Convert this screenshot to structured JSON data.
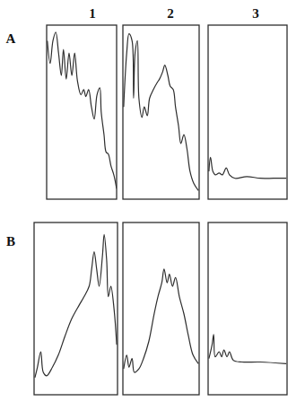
{
  "column_labels": [
    "1",
    "2",
    "3"
  ],
  "row_labels": [
    "A",
    "B"
  ],
  "chart_data": [
    {
      "type": "line",
      "tick_labels": false,
      "xlim": [
        0,
        100
      ],
      "ylim": [
        0,
        100
      ],
      "x": [
        1,
        5,
        9,
        13,
        17,
        21,
        24,
        28,
        32,
        36,
        40,
        44,
        49,
        53,
        56,
        60,
        64,
        68,
        72,
        76,
        78,
        82,
        85,
        88,
        92,
        96,
        100
      ],
      "values": [
        91,
        78,
        91,
        96,
        84,
        71,
        86,
        69,
        84,
        71,
        84,
        68,
        60,
        63,
        59,
        63,
        53,
        46,
        60,
        64,
        50,
        37,
        27,
        26,
        19,
        14,
        6
      ]
    },
    {
      "type": "line",
      "tick_labels": false,
      "xlim": [
        0,
        100
      ],
      "ylim": [
        0,
        100
      ],
      "x": [
        1,
        5,
        8,
        12,
        14,
        16,
        19,
        21,
        25,
        28,
        32,
        35,
        40,
        45,
        48,
        52,
        55,
        59,
        62,
        66,
        69,
        73,
        76,
        80,
        84,
        88,
        93,
        99
      ],
      "values": [
        53,
        84,
        95,
        91,
        58,
        84,
        91,
        58,
        47,
        53,
        48,
        58,
        63,
        67,
        69,
        73,
        77,
        71,
        65,
        63,
        53,
        42,
        32,
        37,
        29,
        16,
        9,
        5
      ]
    },
    {
      "type": "line",
      "tick_labels": false,
      "xlim": [
        0,
        100
      ],
      "ylim": [
        0,
        100
      ],
      "x": [
        1,
        3,
        6,
        9,
        14,
        18,
        23,
        27,
        34,
        49,
        66,
        83,
        99
      ],
      "values": [
        16,
        24,
        16,
        14,
        15,
        14,
        18,
        14,
        12,
        13,
        12,
        12,
        12
      ]
    },
    {
      "type": "line",
      "tick_labels": false,
      "xlim": [
        0,
        100
      ],
      "ylim": [
        0,
        100
      ],
      "x": [
        1,
        4,
        8,
        11,
        15,
        22,
        29,
        37,
        45,
        54,
        60,
        66,
        69,
        72,
        75,
        78,
        82,
        84,
        87,
        89,
        92,
        96,
        99
      ],
      "values": [
        10,
        16,
        25,
        13,
        11,
        16,
        23,
        34,
        44,
        52,
        57,
        63,
        73,
        83,
        73,
        63,
        81,
        93,
        78,
        57,
        63,
        49,
        29
      ]
    },
    {
      "type": "line",
      "tick_labels": false,
      "xlim": [
        0,
        100
      ],
      "ylim": [
        0,
        100
      ],
      "x": [
        1,
        5,
        8,
        12,
        15,
        21,
        27,
        34,
        41,
        46,
        51,
        54,
        58,
        61,
        65,
        69,
        74,
        80,
        86,
        92,
        99
      ],
      "values": [
        15,
        23,
        16,
        21,
        13,
        15,
        21,
        31,
        47,
        57,
        65,
        73,
        65,
        70,
        63,
        68,
        57,
        47,
        34,
        23,
        18
      ]
    },
    {
      "type": "line",
      "tick_labels": false,
      "xlim": [
        0,
        100
      ],
      "ylim": [
        0,
        100
      ],
      "x": [
        1,
        5,
        7,
        9,
        14,
        17,
        20,
        24,
        27,
        32,
        43,
        66,
        99
      ],
      "values": [
        21,
        29,
        35,
        22,
        25,
        22,
        26,
        22,
        25,
        20,
        19,
        19,
        18
      ]
    }
  ]
}
